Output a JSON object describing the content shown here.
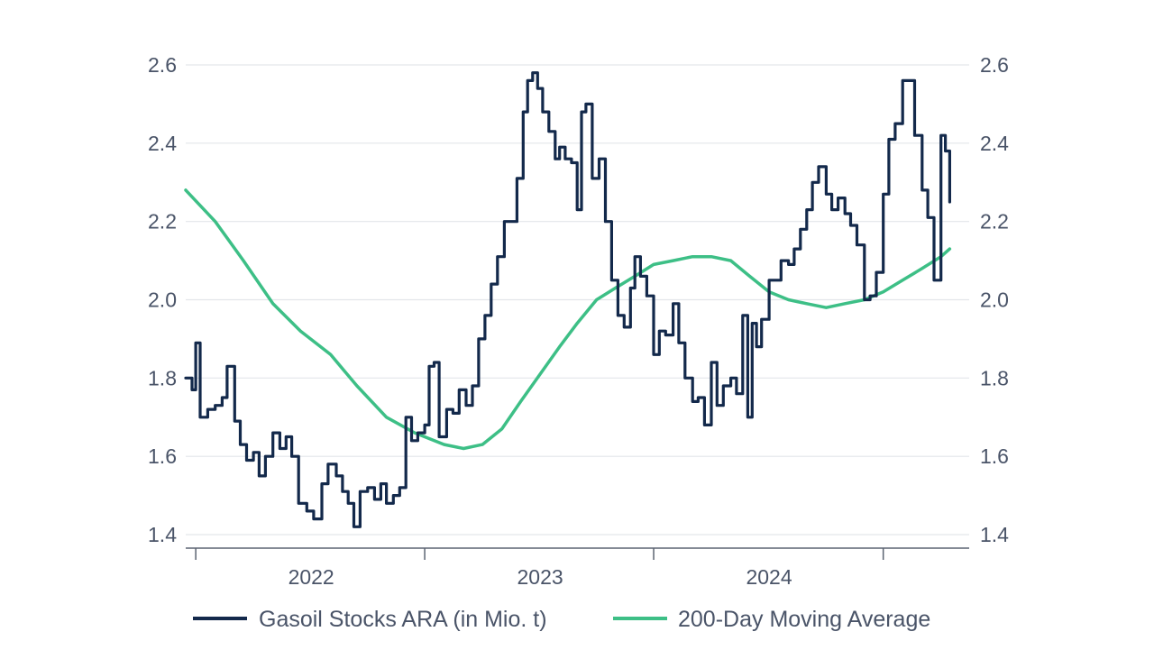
{
  "chart_data": {
    "type": "line",
    "title": "",
    "xlabel": "",
    "ylabel": "",
    "x_range": [
      "2021-06-15",
      "2024-11-15"
    ],
    "ylim": [
      1.4,
      2.6
    ],
    "y_ticks": [
      "1.4",
      "1.6",
      "1.8",
      "2.0",
      "2.2",
      "2.4",
      "2.6"
    ],
    "y_ticks_right": [
      "1.4",
      "1.6",
      "1.8",
      "2.0",
      "2.2",
      "2.4",
      "2.6"
    ],
    "x_ticks": [
      {
        "label": "2022",
        "date": "2022-01-01"
      },
      {
        "label": "2023",
        "date": "2023-01-01"
      },
      {
        "label": "2024",
        "date": "2024-01-01"
      }
    ],
    "x_boundaries": [
      "2021-07-01",
      "2022-07-01",
      "2023-07-01",
      "2024-07-01"
    ],
    "grid": true,
    "legend_position": "bottom",
    "series": [
      {
        "name": "Gasoil Stocks ARA (in Mio. t)",
        "color": "#13294b",
        "points": [
          [
            "2021-06-15",
            1.8
          ],
          [
            "2021-06-25",
            1.77
          ],
          [
            "2021-07-01",
            1.89
          ],
          [
            "2021-07-08",
            1.7
          ],
          [
            "2021-07-20",
            1.72
          ],
          [
            "2021-08-01",
            1.73
          ],
          [
            "2021-08-12",
            1.75
          ],
          [
            "2021-08-20",
            1.83
          ],
          [
            "2021-09-01",
            1.69
          ],
          [
            "2021-09-10",
            1.63
          ],
          [
            "2021-09-20",
            1.59
          ],
          [
            "2021-10-01",
            1.61
          ],
          [
            "2021-10-10",
            1.55
          ],
          [
            "2021-10-20",
            1.6
          ],
          [
            "2021-11-01",
            1.66
          ],
          [
            "2021-11-12",
            1.62
          ],
          [
            "2021-11-22",
            1.65
          ],
          [
            "2021-12-01",
            1.6
          ],
          [
            "2021-12-12",
            1.48
          ],
          [
            "2021-12-25",
            1.46
          ],
          [
            "2022-01-05",
            1.44
          ],
          [
            "2022-01-18",
            1.53
          ],
          [
            "2022-01-28",
            1.58
          ],
          [
            "2022-02-10",
            1.55
          ],
          [
            "2022-02-20",
            1.51
          ],
          [
            "2022-03-01",
            1.48
          ],
          [
            "2022-03-10",
            1.42
          ],
          [
            "2022-03-20",
            1.51
          ],
          [
            "2022-04-01",
            1.52
          ],
          [
            "2022-04-12",
            1.49
          ],
          [
            "2022-04-22",
            1.53
          ],
          [
            "2022-05-01",
            1.48
          ],
          [
            "2022-05-12",
            1.5
          ],
          [
            "2022-05-22",
            1.52
          ],
          [
            "2022-06-01",
            1.7
          ],
          [
            "2022-06-10",
            1.64
          ],
          [
            "2022-06-20",
            1.66
          ],
          [
            "2022-07-01",
            1.68
          ],
          [
            "2022-07-08",
            1.83
          ],
          [
            "2022-07-16",
            1.84
          ],
          [
            "2022-07-24",
            1.65
          ],
          [
            "2022-08-05",
            1.72
          ],
          [
            "2022-08-15",
            1.71
          ],
          [
            "2022-08-25",
            1.77
          ],
          [
            "2022-09-05",
            1.73
          ],
          [
            "2022-09-15",
            1.78
          ],
          [
            "2022-09-25",
            1.9
          ],
          [
            "2022-10-05",
            1.96
          ],
          [
            "2022-10-15",
            2.04
          ],
          [
            "2022-10-25",
            2.11
          ],
          [
            "2022-11-05",
            2.2
          ],
          [
            "2022-11-15",
            2.2
          ],
          [
            "2022-11-25",
            2.31
          ],
          [
            "2022-12-05",
            2.48
          ],
          [
            "2022-12-12",
            2.56
          ],
          [
            "2022-12-20",
            2.58
          ],
          [
            "2022-12-28",
            2.54
          ],
          [
            "2023-01-05",
            2.48
          ],
          [
            "2023-01-15",
            2.43
          ],
          [
            "2023-01-25",
            2.36
          ],
          [
            "2023-02-01",
            2.39
          ],
          [
            "2023-02-10",
            2.36
          ],
          [
            "2023-02-20",
            2.35
          ],
          [
            "2023-03-01",
            2.23
          ],
          [
            "2023-03-08",
            2.48
          ],
          [
            "2023-03-15",
            2.5
          ],
          [
            "2023-03-25",
            2.31
          ],
          [
            "2023-04-05",
            2.36
          ],
          [
            "2023-04-15",
            2.2
          ],
          [
            "2023-04-25",
            2.05
          ],
          [
            "2023-05-05",
            1.96
          ],
          [
            "2023-05-15",
            1.93
          ],
          [
            "2023-05-25",
            2.03
          ],
          [
            "2023-06-01",
            2.11
          ],
          [
            "2023-06-10",
            2.06
          ],
          [
            "2023-06-20",
            2.01
          ],
          [
            "2023-07-01",
            1.86
          ],
          [
            "2023-07-10",
            1.92
          ],
          [
            "2023-07-20",
            1.91
          ],
          [
            "2023-08-01",
            1.99
          ],
          [
            "2023-08-10",
            1.89
          ],
          [
            "2023-08-20",
            1.8
          ],
          [
            "2023-09-01",
            1.74
          ],
          [
            "2023-09-10",
            1.75
          ],
          [
            "2023-09-20",
            1.68
          ],
          [
            "2023-10-01",
            1.84
          ],
          [
            "2023-10-10",
            1.73
          ],
          [
            "2023-10-20",
            1.78
          ],
          [
            "2023-11-01",
            1.8
          ],
          [
            "2023-11-10",
            1.76
          ],
          [
            "2023-11-20",
            1.96
          ],
          [
            "2023-11-28",
            1.7
          ],
          [
            "2023-12-05",
            1.94
          ],
          [
            "2023-12-12",
            1.88
          ],
          [
            "2023-12-20",
            1.95
          ],
          [
            "2024-01-01",
            2.05
          ],
          [
            "2024-01-10",
            2.05
          ],
          [
            "2024-01-20",
            2.1
          ],
          [
            "2024-02-01",
            2.09
          ],
          [
            "2024-02-10",
            2.13
          ],
          [
            "2024-02-20",
            2.18
          ],
          [
            "2024-03-01",
            2.23
          ],
          [
            "2024-03-10",
            2.3
          ],
          [
            "2024-03-20",
            2.34
          ],
          [
            "2024-04-01",
            2.27
          ],
          [
            "2024-04-10",
            2.23
          ],
          [
            "2024-04-20",
            2.26
          ],
          [
            "2024-05-01",
            2.22
          ],
          [
            "2024-05-10",
            2.19
          ],
          [
            "2024-05-20",
            2.14
          ],
          [
            "2024-06-01",
            2.0
          ],
          [
            "2024-06-10",
            2.01
          ],
          [
            "2024-06-20",
            2.07
          ],
          [
            "2024-07-01",
            2.27
          ],
          [
            "2024-07-10",
            2.41
          ],
          [
            "2024-07-20",
            2.45
          ],
          [
            "2024-08-01",
            2.56
          ],
          [
            "2024-08-08",
            2.56
          ],
          [
            "2024-08-20",
            2.42
          ],
          [
            "2024-09-01",
            2.28
          ],
          [
            "2024-09-10",
            2.21
          ],
          [
            "2024-09-20",
            2.05
          ],
          [
            "2024-10-01",
            2.42
          ],
          [
            "2024-10-08",
            2.38
          ],
          [
            "2024-10-15",
            2.25
          ]
        ]
      },
      {
        "name": "200-Day Moving Average",
        "color": "#3dbf86",
        "points": [
          [
            "2021-06-15",
            2.28
          ],
          [
            "2021-08-01",
            2.2
          ],
          [
            "2021-09-15",
            2.1
          ],
          [
            "2021-11-01",
            1.99
          ],
          [
            "2021-12-15",
            1.92
          ],
          [
            "2022-02-01",
            1.86
          ],
          [
            "2022-03-15",
            1.78
          ],
          [
            "2022-05-01",
            1.7
          ],
          [
            "2022-06-15",
            1.66
          ],
          [
            "2022-08-01",
            1.63
          ],
          [
            "2022-09-01",
            1.62
          ],
          [
            "2022-10-01",
            1.63
          ],
          [
            "2022-11-01",
            1.67
          ],
          [
            "2022-12-01",
            1.74
          ],
          [
            "2023-01-01",
            1.81
          ],
          [
            "2023-02-01",
            1.88
          ],
          [
            "2023-03-01",
            1.94
          ],
          [
            "2023-04-01",
            2.0
          ],
          [
            "2023-05-01",
            2.03
          ],
          [
            "2023-06-01",
            2.06
          ],
          [
            "2023-07-01",
            2.09
          ],
          [
            "2023-08-01",
            2.1
          ],
          [
            "2023-09-01",
            2.11
          ],
          [
            "2023-10-01",
            2.11
          ],
          [
            "2023-11-01",
            2.1
          ],
          [
            "2023-12-01",
            2.06
          ],
          [
            "2024-01-01",
            2.02
          ],
          [
            "2024-02-01",
            2.0
          ],
          [
            "2024-03-01",
            1.99
          ],
          [
            "2024-04-01",
            1.98
          ],
          [
            "2024-05-01",
            1.99
          ],
          [
            "2024-06-01",
            2.0
          ],
          [
            "2024-07-01",
            2.02
          ],
          [
            "2024-08-01",
            2.05
          ],
          [
            "2024-09-01",
            2.08
          ],
          [
            "2024-10-01",
            2.11
          ],
          [
            "2024-10-15",
            2.13
          ]
        ]
      }
    ]
  }
}
